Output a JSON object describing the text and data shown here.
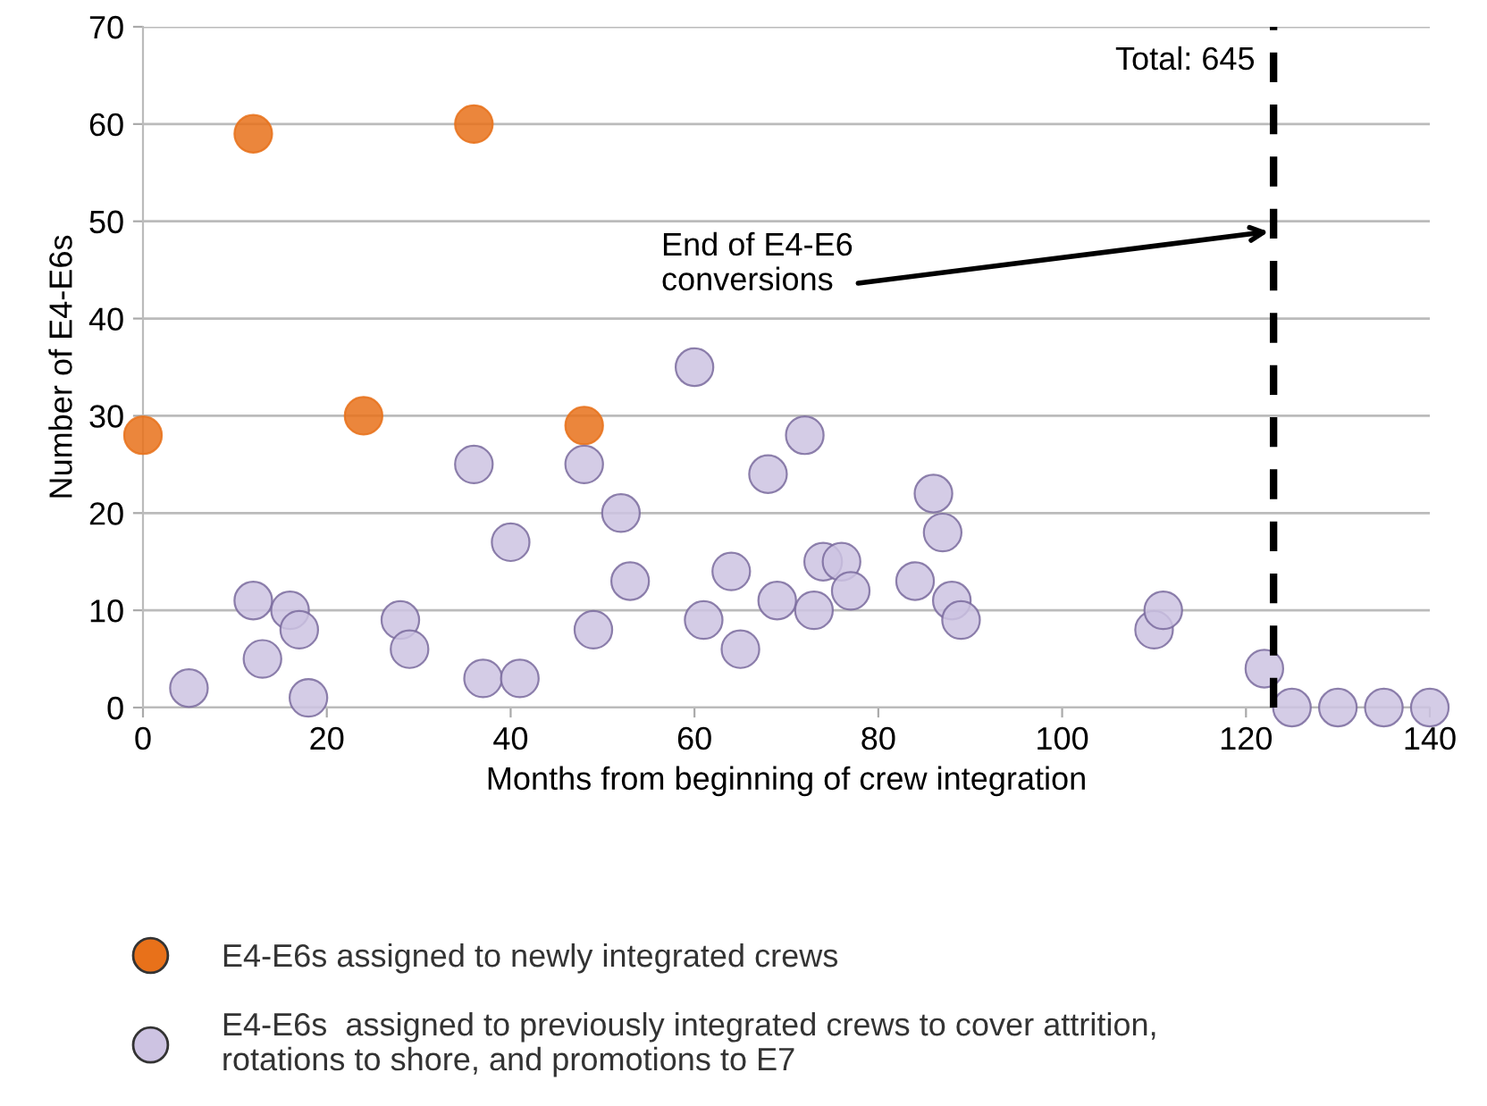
{
  "chart_data": {
    "type": "scatter",
    "xlabel": "Months from beginning of crew integration",
    "ylabel": "Number of E4-E6s",
    "xlim": [
      0,
      140
    ],
    "xticks": [
      0,
      20,
      40,
      60,
      80,
      100,
      120,
      140
    ],
    "ylim": [
      0,
      70
    ],
    "yticks": [
      0,
      10,
      20,
      30,
      40,
      50,
      60,
      70
    ],
    "grid": "y",
    "legend": "bottom left",
    "marker": "circle",
    "series": [
      {
        "name": "E4-E6s assigned to newly integrated crews",
        "color": "#e8711a",
        "x": [
          0,
          12,
          24,
          36,
          48
        ],
        "values": [
          28,
          59,
          30,
          60,
          29
        ]
      },
      {
        "name": "E4-E6s  assigned to previously integrated crews to cover attrition,\nrotations to shore, and promotions to E7",
        "color": "#cdc3e2",
        "x": [
          5,
          12,
          13,
          16,
          17,
          18,
          28,
          29,
          36,
          37,
          40,
          41,
          48,
          49,
          52,
          53,
          60,
          61,
          64,
          65,
          68,
          69,
          72,
          73,
          74,
          76,
          77,
          84,
          86,
          87,
          88,
          89,
          110,
          111,
          122,
          125,
          130,
          135,
          140
        ],
        "values": [
          2,
          11,
          5,
          10,
          8,
          1,
          9,
          6,
          25,
          3,
          17,
          3,
          25,
          8,
          20,
          13,
          35,
          9,
          14,
          6,
          24,
          11,
          28,
          10,
          15,
          15,
          12,
          13,
          22,
          18,
          11,
          9,
          8,
          10,
          4,
          0,
          0,
          0,
          0
        ]
      }
    ],
    "ref_lines": [
      {
        "axis": "x",
        "value": 123,
        "color": "#000000",
        "line_style": "dashed"
      }
    ],
    "annotations": [
      "Total: 645",
      "End of E4-E6\nconversions"
    ]
  }
}
